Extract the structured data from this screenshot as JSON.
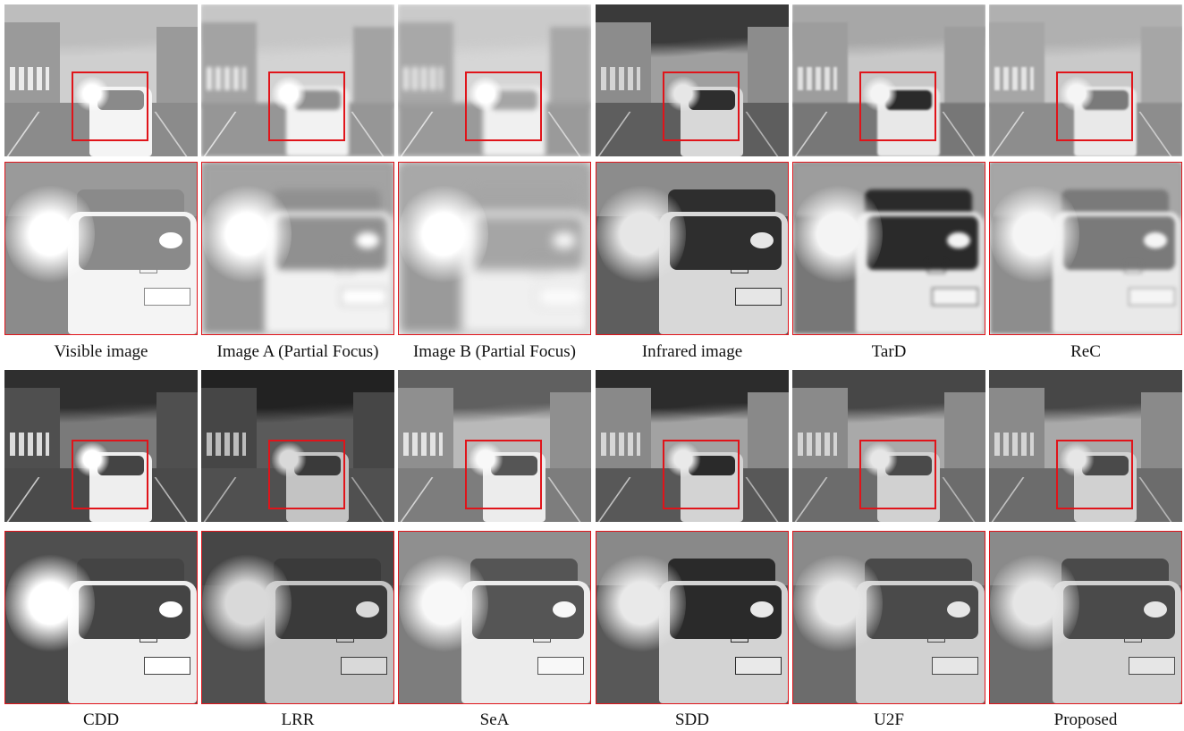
{
  "figure": {
    "rows": [
      {
        "panels": [
          {
            "id": "visible",
            "caption": "Visible image",
            "tone": "bright"
          },
          {
            "id": "imgA",
            "caption": "Image A (Partial Focus)",
            "tone": "bright-blur"
          },
          {
            "id": "imgB",
            "caption": "Image B (Partial Focus)",
            "tone": "bright-blur-strong"
          },
          {
            "id": "infrared",
            "caption": "Infrared image",
            "tone": "ir"
          },
          {
            "id": "tard",
            "caption": "TarD",
            "tone": "fused-dark-car"
          },
          {
            "id": "rec",
            "caption": "ReC",
            "tone": "fused-bright"
          }
        ]
      },
      {
        "panels": [
          {
            "id": "cdd",
            "caption": "CDD",
            "tone": "fused-high-contrast"
          },
          {
            "id": "lrr",
            "caption": "LRR",
            "tone": "fused-dark"
          },
          {
            "id": "sea",
            "caption": "SeA",
            "tone": "fused-bright-detail"
          },
          {
            "id": "sdd",
            "caption": "SDD",
            "tone": "ir-like"
          },
          {
            "id": "u2f",
            "caption": "U2F",
            "tone": "fused-mid"
          },
          {
            "id": "proposed",
            "caption": "Proposed",
            "tone": "fused-mid"
          }
        ]
      }
    ],
    "colors": {
      "highlight_box": "#e0141a",
      "background": "#ffffff"
    }
  }
}
